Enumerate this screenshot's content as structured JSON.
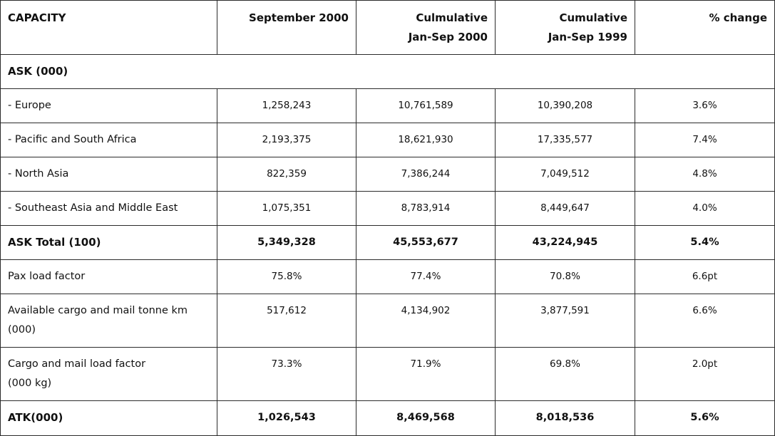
{
  "table": {
    "headers": [
      [
        "CAPACITY"
      ],
      [
        "September 2000"
      ],
      [
        "Culmulative",
        "Jan-Sep 2000"
      ],
      [
        "Cumulative",
        "Jan-Sep 1999"
      ],
      [
        "% change"
      ]
    ],
    "section_label": "ASK (000)",
    "rows": [
      {
        "label": [
          "- Europe"
        ],
        "values": [
          "1,258,243",
          "10,761,589",
          "10,390,208",
          "3.6%"
        ]
      },
      {
        "label": [
          "- Pacific and South Africa"
        ],
        "values": [
          "2,193,375",
          "18,621,930",
          "17,335,577",
          "7.4%"
        ]
      },
      {
        "label": [
          "- North Asia"
        ],
        "values": [
          "822,359",
          "7,386,244",
          "7,049,512",
          "4.8%"
        ]
      },
      {
        "label": [
          "- Southeast Asia and Middle East"
        ],
        "values": [
          "1,075,351",
          "8,783,914",
          "8,449,647",
          "4.0%"
        ]
      },
      {
        "label": [
          "ASK Total (100)"
        ],
        "values": [
          "5,349,328",
          "45,553,677",
          "43,224,945",
          "5.4%"
        ]
      },
      {
        "label": [
          "Pax load factor"
        ],
        "values": [
          "75.8%",
          "77.4%",
          "70.8%",
          "6.6pt"
        ]
      },
      {
        "label": [
          "Available cargo and mail tonne km",
          "(000)"
        ],
        "values": [
          "517,612",
          "4,134,902",
          "3,877,591",
          "6.6%"
        ]
      },
      {
        "label": [
          "Cargo and mail load factor",
          "(000 kg)"
        ],
        "values": [
          "73.3%",
          "71.9%",
          "69.8%",
          "2.0pt"
        ]
      },
      {
        "label": [
          "ATK(000)"
        ],
        "values": [
          "1,026,543",
          "8,469,568",
          "8,018,536",
          "5.6%"
        ]
      }
    ]
  }
}
